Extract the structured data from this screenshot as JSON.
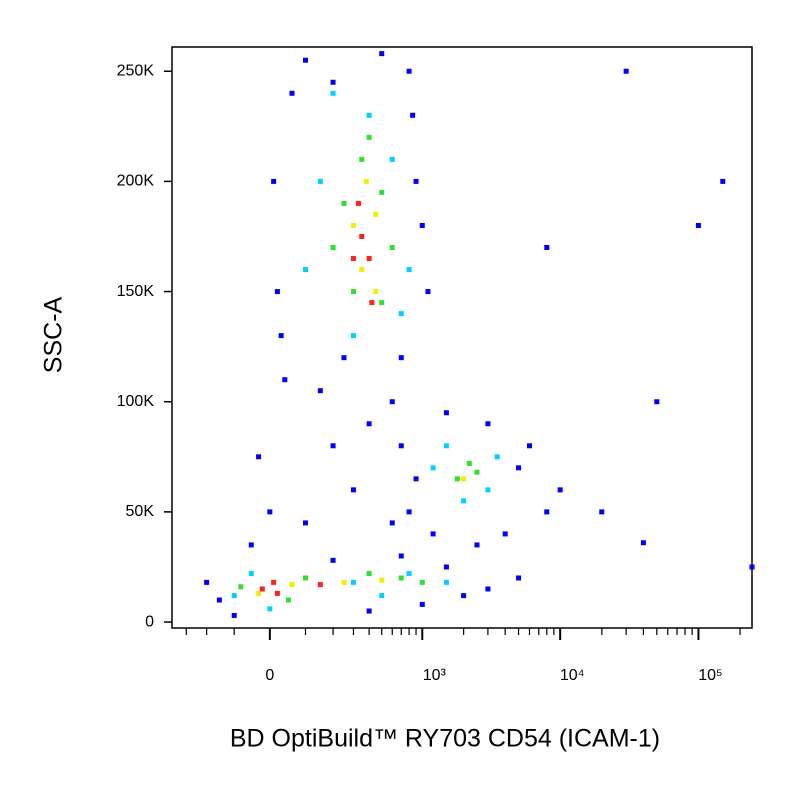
{
  "chart_data": {
    "type": "scatter",
    "xlabel": "BD OptiBuild™ RY703 CD54 (ICAM-1)",
    "ylabel": "SSC-A",
    "xscale": "biexponential",
    "xlim": [
      -390,
      244000
    ],
    "ylim": [
      -2700,
      261000
    ],
    "xticks": [
      0,
      {
        "value": 1000,
        "label": "10³"
      },
      {
        "value": 10000,
        "label": "10⁴"
      },
      {
        "value": 100000,
        "label": "10⁵"
      }
    ],
    "xminorticks": [
      -300,
      -200,
      -100,
      100,
      200,
      300,
      400,
      500,
      600,
      700,
      800,
      900,
      2000,
      3000,
      4000,
      5000,
      6000,
      7000,
      8000,
      9000,
      20000,
      30000,
      40000,
      50000,
      60000,
      70000,
      80000,
      90000,
      200000
    ],
    "yticks": [
      0,
      {
        "value": 50000,
        "label": "50K"
      },
      {
        "value": 100000,
        "label": "100K"
      },
      {
        "value": 150000,
        "label": "150K"
      },
      {
        "value": 200000,
        "label": "200K"
      },
      {
        "value": 250000,
        "label": "250K"
      }
    ],
    "series": [
      {
        "color": "#0000ff",
        "x": [
          40,
          60,
          900,
          20,
          1100,
          700,
          100,
          500,
          800,
          10,
          150,
          600,
          1000,
          30,
          850,
          200,
          250,
          700,
          800,
          1500,
          3000,
          5000,
          8000,
          10000,
          20000,
          4000,
          1200,
          2500,
          6000,
          900,
          600,
          -150,
          -200,
          -100,
          1000,
          2000,
          3000,
          5000,
          -50,
          0,
          100,
          1500,
          400,
          700,
          200,
          150000,
          100000,
          50000,
          244000,
          30000,
          8000,
          40000,
          200,
          400,
          -30,
          300
        ],
        "y": [
          110000,
          240000,
          200000,
          150000,
          150000,
          120000,
          255000,
          258000,
          250000,
          200000,
          105000,
          100000,
          180000,
          130000,
          230000,
          245000,
          120000,
          80000,
          50000,
          95000,
          90000,
          70000,
          50000,
          60000,
          50000,
          40000,
          40000,
          35000,
          80000,
          65000,
          45000,
          10000,
          18000,
          3000,
          8000,
          12000,
          15000,
          20000,
          35000,
          50000,
          45000,
          25000,
          5000,
          30000,
          28000,
          200000,
          180000,
          100000,
          25000,
          250000,
          170000,
          36000,
          80000,
          90000,
          75000,
          60000
        ]
      },
      {
        "color": "#00d0ff",
        "x": [
          150,
          600,
          100,
          800,
          400,
          300,
          700,
          200,
          1500,
          3000,
          2000,
          1200,
          3500,
          -100,
          300,
          800,
          1500,
          -50,
          0,
          500
        ],
        "y": [
          200000,
          210000,
          160000,
          160000,
          230000,
          130000,
          140000,
          240000,
          80000,
          60000,
          55000,
          70000,
          75000,
          12000,
          18000,
          22000,
          18000,
          22000,
          6000,
          12000
        ]
      },
      {
        "color": "#30e030",
        "x": [
          250,
          500,
          200,
          600,
          350,
          300,
          500,
          400,
          1800,
          2500,
          2200,
          -80,
          100,
          400,
          700,
          1000,
          50
        ],
        "y": [
          190000,
          195000,
          170000,
          170000,
          210000,
          150000,
          145000,
          220000,
          65000,
          68000,
          72000,
          16000,
          20000,
          22000,
          20000,
          18000,
          10000
        ]
      },
      {
        "color": "#f0f000",
        "x": [
          300,
          450,
          350,
          450,
          380,
          2000,
          -30,
          60,
          250,
          500
        ],
        "y": [
          180000,
          185000,
          160000,
          150000,
          200000,
          65000,
          13000,
          17000,
          18000,
          19000
        ]
      },
      {
        "color": "#ff2020",
        "x": [
          350,
          400,
          300,
          420,
          330,
          -20,
          20,
          10,
          150
        ],
        "y": [
          175000,
          165000,
          165000,
          145000,
          190000,
          15000,
          13000,
          18000,
          17000
        ]
      }
    ]
  }
}
